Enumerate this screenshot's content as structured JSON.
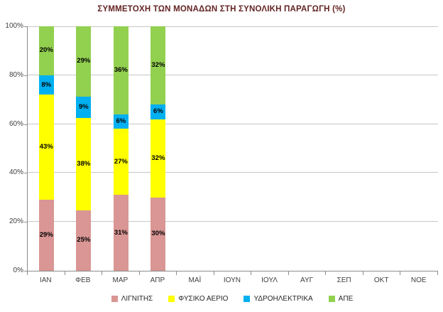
{
  "chart_data": {
    "type": "bar",
    "stacked": true,
    "title": "ΣΥΜΜΕΤΟΧΗ ΤΩΝ ΜΟΝΑΔΩΝ ΣΤΗ ΣΥΝΟΛΙΚΗ ΠΑΡΑΓΩΓΗ (%)",
    "categories": [
      "ΙΑΝ",
      "ΦΕΒ",
      "ΜΑΡ",
      "ΑΠΡ",
      "ΜΑΪ",
      "ΙΟΥΝ",
      "ΙΟΥΛ",
      "ΑΥΓ",
      "ΣΕΠ",
      "ΟΚΤ",
      "ΝΟΕ"
    ],
    "series": [
      {
        "name": "ΛΙΓΝΙΤΗΣ",
        "color": "#D99694",
        "values": [
          29,
          25,
          31,
          30,
          null,
          null,
          null,
          null,
          null,
          null,
          null
        ]
      },
      {
        "name": "ΦΥΣΙΚΟ ΑΕΡΙΟ",
        "color": "#FFFF00",
        "values": [
          43,
          38,
          27,
          32,
          null,
          null,
          null,
          null,
          null,
          null,
          null
        ]
      },
      {
        "name": "ΥΔΡΟΗΛΕΚΤΡΙΚΑ",
        "color": "#00B0F0",
        "values": [
          8,
          9,
          6,
          6,
          null,
          null,
          null,
          null,
          null,
          null,
          null
        ]
      },
      {
        "name": "ΑΠΕ",
        "color": "#92D050",
        "values": [
          20,
          29,
          36,
          32,
          null,
          null,
          null,
          null,
          null,
          null,
          null
        ]
      }
    ],
    "data_label_suffix": "%",
    "xlabel": "",
    "ylabel": "",
    "ylim": [
      0,
      100
    ],
    "yticks": [
      "0%",
      "20%",
      "40%",
      "60%",
      "80%",
      "100%"
    ],
    "ytick_values": [
      0,
      20,
      40,
      60,
      80,
      100
    ],
    "grid": true,
    "legend_position": "bottom",
    "colors": {
      "title_text": "#632423",
      "axis_line": "#8c8c8c",
      "gridline": "#c6c6c6",
      "tick_text": "#3f3f3f",
      "data_label_text": "#000000",
      "background": "#ffffff"
    }
  }
}
